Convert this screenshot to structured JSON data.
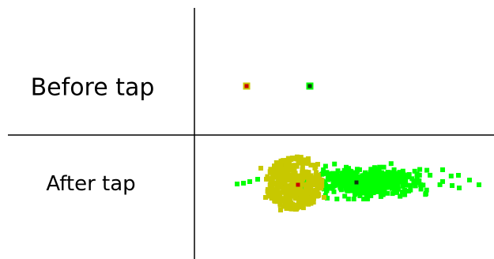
{
  "rows": {
    "before_label": "Before tap",
    "after_label": "After tap"
  },
  "colors": {
    "background": "#ffffff",
    "grid_line": "#000000",
    "yellow_cloud": "#c8c800",
    "green_cloud": "#00ff00",
    "red_marker": "#cc0000",
    "dark_marker": "#113311",
    "marker_ring_yellow": "#c8c800",
    "marker_ring_green": "#00ff00"
  }
}
